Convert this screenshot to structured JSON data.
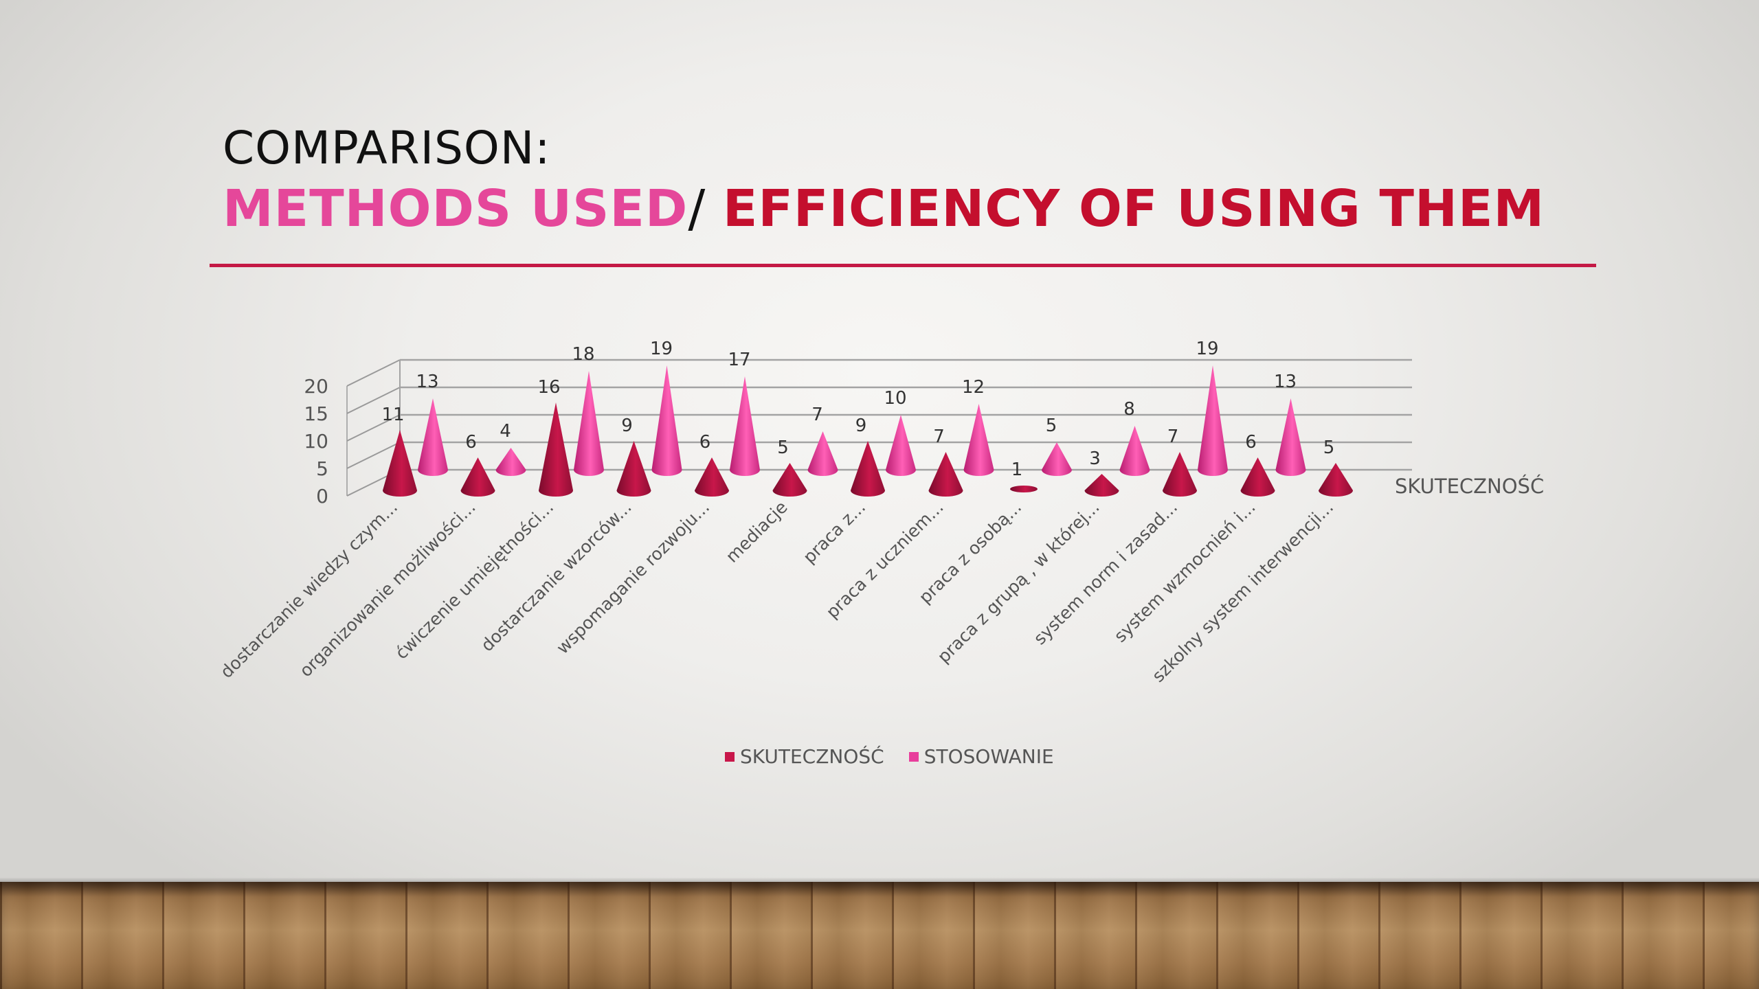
{
  "slide": {
    "title_line1": "COMPARISON:",
    "title_part_a": "METHODS USED",
    "title_sep": "/ ",
    "title_part_b": "EFFICIENCY OF USING THEM"
  },
  "colors": {
    "title_a": "#e5479a",
    "title_b": "#c40f2e",
    "rule": "#c41945",
    "series1": "#c8174a",
    "series2": "#e83e9c"
  },
  "chart_data": {
    "type": "bar",
    "subtype": "3d-cone",
    "categories": [
      "dostarczanie wiedzy czym...",
      "organizowanie możliwości...",
      "ćwiczenie umiejętności...",
      "dostarczanie wzorców...",
      "wspomaganie rozwoju...",
      "mediacje",
      "praca z...",
      "praca z uczniem...",
      "praca z osobą...",
      "praca z grupą , w której...",
      "system norm i zasad...",
      "system wzmocnień i...",
      "szkolny system interwencji..."
    ],
    "series": [
      {
        "name": "SKUTECZNOŚĆ",
        "values": [
          11,
          6,
          16,
          9,
          6,
          5,
          9,
          7,
          1,
          3,
          7,
          6,
          5
        ]
      },
      {
        "name": "STOSOWANIE",
        "values": [
          13,
          4,
          18,
          19,
          17,
          7,
          10,
          12,
          5,
          8,
          19,
          13,
          null
        ]
      }
    ],
    "depth_axis_label": "SKUTECZNOŚĆ",
    "y_ticks": [
      "0",
      "5",
      "10",
      "15",
      "20"
    ],
    "ylim": [
      0,
      20
    ],
    "grid": true,
    "legend": "bottom"
  }
}
